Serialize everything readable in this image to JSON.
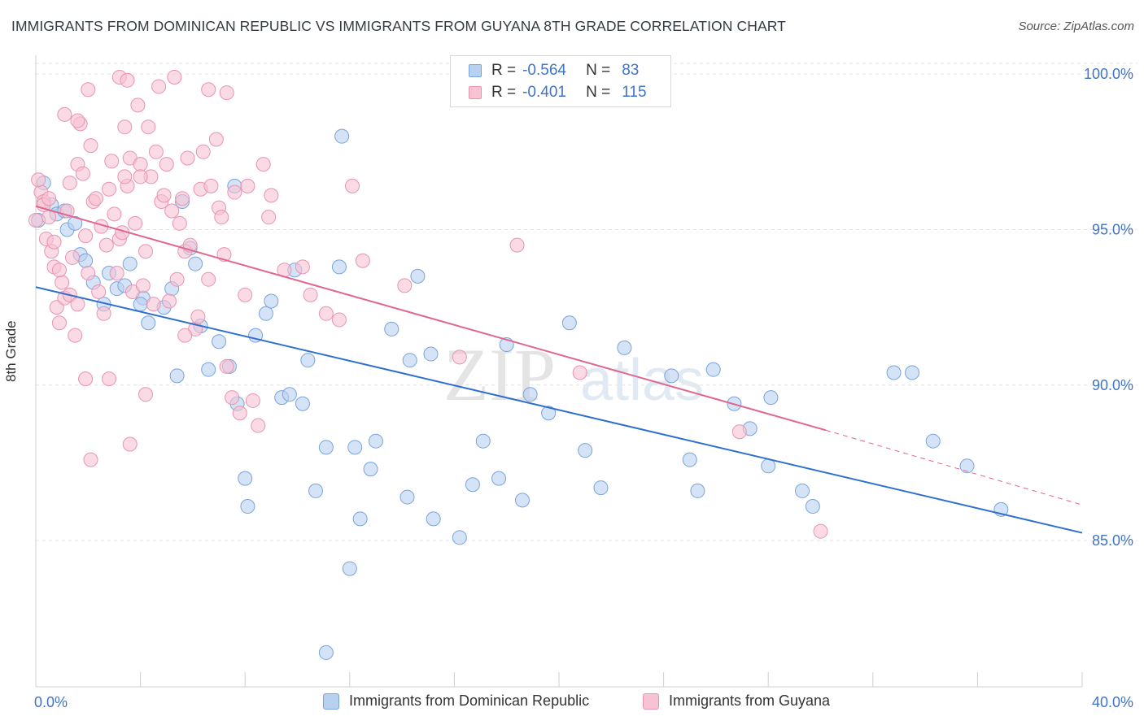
{
  "header": {
    "title": "IMMIGRANTS FROM DOMINICAN REPUBLIC VS IMMIGRANTS FROM GUYANA 8TH GRADE CORRELATION CHART",
    "source": "Source: ZipAtlas.com"
  },
  "watermark": "ZIPatlas",
  "legend": {
    "rows": [
      {
        "r_label": "R =",
        "r_value": "-0.564",
        "n_label": "N =",
        "n_value": "83"
      },
      {
        "r_label": "R =",
        "r_value": "-0.401",
        "n_label": "N =",
        "n_value": "115"
      }
    ]
  },
  "colors": {
    "blue_fill": "#b9d1f0",
    "blue_stroke": "#7aa3db",
    "blue_line": "#2f6fcf",
    "pink_fill": "#f7c2d2",
    "pink_stroke": "#e894b0",
    "pink_line": "#e0668f",
    "tick_label": "#3f74c6",
    "grid": "#e3e3e3"
  },
  "chart_data": {
    "type": "scatter",
    "xlabel": "",
    "ylabel": "8th Grade",
    "xlim": [
      0,
      40
    ],
    "ylim": [
      80.3,
      100.5
    ],
    "x_tick_labels": [
      "0.0%",
      "40.0%"
    ],
    "y_ticks": [
      85,
      90,
      95,
      100
    ],
    "y_tick_labels": [
      "85.0%",
      "90.0%",
      "95.0%",
      "100.0%"
    ],
    "grid": "horizontal dashed",
    "legend_position": "bottom",
    "series": [
      {
        "name": "Immigrants from Dominican Republic",
        "color": "blue",
        "points": [
          [
            0.1,
            95.3
          ],
          [
            0.3,
            96.5
          ],
          [
            0.6,
            95.8
          ],
          [
            0.8,
            95.5
          ],
          [
            1.2,
            95.0
          ],
          [
            1.5,
            95.2
          ],
          [
            1.7,
            94.2
          ],
          [
            1.9,
            94.0
          ],
          [
            2.2,
            93.3
          ],
          [
            2.6,
            92.6
          ],
          [
            2.8,
            93.6
          ],
          [
            3.1,
            93.1
          ],
          [
            3.4,
            93.2
          ],
          [
            3.6,
            93.9
          ],
          [
            4.1,
            92.8
          ],
          [
            4.3,
            92.0
          ],
          [
            4.9,
            92.5
          ],
          [
            5.2,
            93.1
          ],
          [
            5.4,
            90.3
          ],
          [
            5.6,
            95.9
          ],
          [
            5.9,
            94.4
          ],
          [
            6.1,
            93.9
          ],
          [
            6.3,
            91.9
          ],
          [
            6.6,
            90.5
          ],
          [
            7.0,
            91.4
          ],
          [
            7.4,
            90.6
          ],
          [
            7.6,
            96.4
          ],
          [
            7.7,
            89.4
          ],
          [
            8.0,
            87.0
          ],
          [
            8.1,
            86.1
          ],
          [
            8.4,
            91.6
          ],
          [
            8.8,
            92.3
          ],
          [
            9.0,
            92.7
          ],
          [
            9.4,
            89.6
          ],
          [
            9.7,
            89.7
          ],
          [
            9.9,
            93.7
          ],
          [
            10.2,
            89.4
          ],
          [
            10.4,
            90.8
          ],
          [
            10.7,
            86.6
          ],
          [
            11.1,
            88.0
          ],
          [
            11.6,
            93.8
          ],
          [
            11.7,
            98.0
          ],
          [
            12.0,
            84.1
          ],
          [
            12.2,
            88.0
          ],
          [
            12.4,
            85.7
          ],
          [
            12.8,
            87.3
          ],
          [
            13.0,
            88.2
          ],
          [
            13.6,
            91.8
          ],
          [
            14.2,
            86.4
          ],
          [
            14.3,
            90.8
          ],
          [
            14.6,
            93.5
          ],
          [
            15.1,
            91.0
          ],
          [
            15.2,
            85.7
          ],
          [
            16.2,
            85.1
          ],
          [
            16.7,
            86.8
          ],
          [
            17.1,
            88.2
          ],
          [
            17.7,
            87.0
          ],
          [
            18.0,
            91.3
          ],
          [
            18.6,
            86.3
          ],
          [
            18.9,
            89.7
          ],
          [
            19.6,
            89.1
          ],
          [
            20.4,
            92.0
          ],
          [
            21.0,
            87.9
          ],
          [
            21.6,
            86.7
          ],
          [
            22.5,
            91.2
          ],
          [
            24.3,
            90.3
          ],
          [
            25.0,
            87.6
          ],
          [
            25.3,
            86.6
          ],
          [
            25.9,
            90.5
          ],
          [
            26.7,
            89.4
          ],
          [
            27.3,
            88.6
          ],
          [
            28.0,
            87.4
          ],
          [
            28.1,
            89.6
          ],
          [
            29.3,
            86.6
          ],
          [
            29.7,
            86.1
          ],
          [
            32.8,
            90.4
          ],
          [
            33.5,
            90.4
          ],
          [
            34.3,
            88.2
          ],
          [
            35.6,
            87.4
          ],
          [
            36.9,
            86.0
          ],
          [
            11.1,
            81.4
          ],
          [
            4.0,
            92.6
          ],
          [
            1.1,
            95.6
          ]
        ]
      },
      {
        "name": "Immigrants from Guyana",
        "color": "pink",
        "points": [
          [
            0.0,
            95.3
          ],
          [
            0.2,
            96.2
          ],
          [
            0.3,
            95.9
          ],
          [
            0.4,
            94.7
          ],
          [
            0.5,
            95.4
          ],
          [
            0.6,
            94.3
          ],
          [
            0.7,
            93.8
          ],
          [
            0.8,
            92.5
          ],
          [
            0.9,
            92.0
          ],
          [
            1.0,
            93.3
          ],
          [
            1.1,
            92.8
          ],
          [
            1.2,
            95.6
          ],
          [
            1.3,
            96.5
          ],
          [
            1.4,
            94.1
          ],
          [
            1.5,
            91.6
          ],
          [
            1.6,
            97.1
          ],
          [
            1.7,
            98.4
          ],
          [
            1.8,
            96.8
          ],
          [
            1.9,
            94.8
          ],
          [
            2.0,
            93.6
          ],
          [
            2.1,
            97.7
          ],
          [
            2.2,
            95.9
          ],
          [
            2.3,
            96.0
          ],
          [
            2.4,
            93.0
          ],
          [
            2.5,
            95.1
          ],
          [
            2.6,
            92.3
          ],
          [
            2.7,
            94.5
          ],
          [
            2.8,
            90.2
          ],
          [
            2.9,
            97.2
          ],
          [
            3.0,
            95.5
          ],
          [
            3.1,
            93.6
          ],
          [
            3.2,
            94.7
          ],
          [
            3.3,
            94.9
          ],
          [
            3.4,
            98.3
          ],
          [
            3.5,
            96.4
          ],
          [
            3.6,
            97.3
          ],
          [
            3.7,
            93.0
          ],
          [
            3.8,
            95.2
          ],
          [
            3.9,
            99.0
          ],
          [
            4.0,
            97.1
          ],
          [
            4.1,
            93.2
          ],
          [
            4.2,
            94.3
          ],
          [
            4.3,
            98.3
          ],
          [
            4.4,
            96.7
          ],
          [
            4.5,
            92.6
          ],
          [
            4.6,
            97.5
          ],
          [
            4.7,
            99.6
          ],
          [
            4.8,
            95.9
          ],
          [
            4.9,
            96.1
          ],
          [
            5.0,
            97.1
          ],
          [
            5.2,
            95.6
          ],
          [
            5.3,
            99.9
          ],
          [
            5.4,
            93.4
          ],
          [
            5.5,
            95.2
          ],
          [
            5.6,
            96.0
          ],
          [
            5.7,
            94.3
          ],
          [
            5.8,
            97.3
          ],
          [
            5.9,
            94.5
          ],
          [
            6.1,
            91.8
          ],
          [
            6.2,
            92.2
          ],
          [
            6.3,
            96.3
          ],
          [
            6.4,
            97.5
          ],
          [
            6.6,
            93.4
          ],
          [
            6.7,
            96.4
          ],
          [
            6.9,
            97.9
          ],
          [
            7.0,
            95.7
          ],
          [
            7.1,
            95.4
          ],
          [
            7.2,
            94.2
          ],
          [
            7.3,
            90.6
          ],
          [
            7.5,
            89.6
          ],
          [
            7.6,
            96.2
          ],
          [
            7.8,
            89.1
          ],
          [
            8.0,
            92.9
          ],
          [
            8.1,
            96.4
          ],
          [
            8.3,
            89.5
          ],
          [
            8.5,
            88.7
          ],
          [
            8.7,
            97.1
          ],
          [
            8.9,
            95.4
          ],
          [
            9.0,
            96.1
          ],
          [
            9.5,
            93.7
          ],
          [
            10.2,
            93.8
          ],
          [
            10.5,
            92.9
          ],
          [
            11.1,
            92.3
          ],
          [
            11.6,
            92.1
          ],
          [
            12.1,
            96.4
          ],
          [
            12.5,
            94.0
          ],
          [
            14.1,
            93.2
          ],
          [
            16.2,
            90.9
          ],
          [
            18.4,
            94.5
          ],
          [
            20.8,
            90.4
          ],
          [
            26.9,
            88.5
          ],
          [
            30.0,
            85.3
          ],
          [
            0.1,
            96.6
          ],
          [
            0.3,
            95.8
          ],
          [
            0.5,
            96.0
          ],
          [
            0.7,
            94.6
          ],
          [
            0.9,
            93.7
          ],
          [
            1.3,
            92.9
          ],
          [
            1.6,
            92.6
          ],
          [
            1.9,
            90.2
          ],
          [
            2.1,
            87.6
          ],
          [
            3.6,
            88.1
          ],
          [
            4.2,
            89.7
          ],
          [
            5.1,
            92.7
          ],
          [
            5.7,
            91.6
          ],
          [
            6.6,
            99.5
          ],
          [
            7.3,
            99.4
          ],
          [
            3.2,
            99.9
          ],
          [
            3.5,
            99.8
          ],
          [
            2.0,
            99.5
          ],
          [
            1.6,
            98.5
          ],
          [
            1.1,
            98.7
          ],
          [
            2.8,
            96.3
          ],
          [
            3.4,
            96.7
          ],
          [
            4.0,
            96.7
          ]
        ]
      }
    ],
    "trend_lines": [
      {
        "series": "Immigrants from Dominican Republic",
        "x0": 0,
        "y0": 93.15,
        "x1": 40,
        "y1": 85.25
      },
      {
        "series": "Immigrants from Guyana",
        "x0": 0,
        "y0": 95.75,
        "x1": 30.2,
        "y1": 88.55,
        "dashed_to_x": 40,
        "dashed_to_y": 86.15
      }
    ]
  }
}
